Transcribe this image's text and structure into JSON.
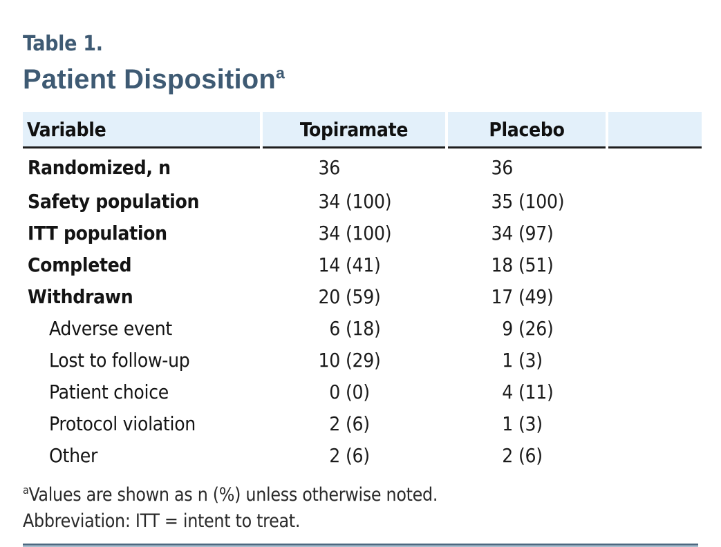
{
  "page": {
    "eyebrow": "Table 1.",
    "title": "Patient Disposition",
    "title_superscript": "a"
  },
  "table": {
    "columns": [
      "Variable",
      "Topiramate",
      "Placebo",
      ""
    ],
    "rows": [
      {
        "label": "Randomized, n",
        "style": "bold",
        "topiramate": {
          "n": "36",
          "pct": ""
        },
        "placebo": {
          "n": "36",
          "pct": ""
        }
      },
      {
        "label": "Safety population",
        "style": "bold",
        "topiramate": {
          "n": "34",
          "pct": "(100)"
        },
        "placebo": {
          "n": "35",
          "pct": "(100)"
        }
      },
      {
        "label": "ITT population",
        "style": "bold",
        "topiramate": {
          "n": "34",
          "pct": "(100)"
        },
        "placebo": {
          "n": "34",
          "pct": "(97)"
        }
      },
      {
        "label": "Completed",
        "style": "bold",
        "topiramate": {
          "n": "14",
          "pct": "(41)"
        },
        "placebo": {
          "n": "18",
          "pct": "(51)"
        }
      },
      {
        "label": "Withdrawn",
        "style": "bold",
        "topiramate": {
          "n": "20",
          "pct": "(59)"
        },
        "placebo": {
          "n": "17",
          "pct": "(49)"
        }
      },
      {
        "label": "Adverse event",
        "style": "sub",
        "topiramate": {
          "n": "6",
          "pct": "(18)"
        },
        "placebo": {
          "n": "9",
          "pct": "(26)"
        }
      },
      {
        "label": "Lost to follow-up",
        "style": "sub",
        "topiramate": {
          "n": "10",
          "pct": "(29)"
        },
        "placebo": {
          "n": "1",
          "pct": "(3)"
        }
      },
      {
        "label": "Patient choice",
        "style": "sub",
        "topiramate": {
          "n": "0",
          "pct": "(0)"
        },
        "placebo": {
          "n": "4",
          "pct": "(11)"
        }
      },
      {
        "label": "Protocol violation",
        "style": "sub",
        "topiramate": {
          "n": "2",
          "pct": "(6)"
        },
        "placebo": {
          "n": "1",
          "pct": "(3)"
        }
      },
      {
        "label": "Other",
        "style": "sub",
        "topiramate": {
          "n": "2",
          "pct": "(6)"
        },
        "placebo": {
          "n": "2",
          "pct": "(6)"
        }
      }
    ]
  },
  "footnotes": [
    {
      "superscript": "a",
      "text": "Values are shown as n (%) unless otherwise noted."
    },
    {
      "superscript": "",
      "text": "Abbreviation: ITT = intent to treat."
    }
  ],
  "colors": {
    "accent_slate": "#3E5A73",
    "header_band": "#E3F0FA",
    "header_rule": "#1E1E1E",
    "body_text": "#141414",
    "bottom_rule_dark": "#4D6880",
    "bottom_rule_light": "#A9BECE"
  }
}
